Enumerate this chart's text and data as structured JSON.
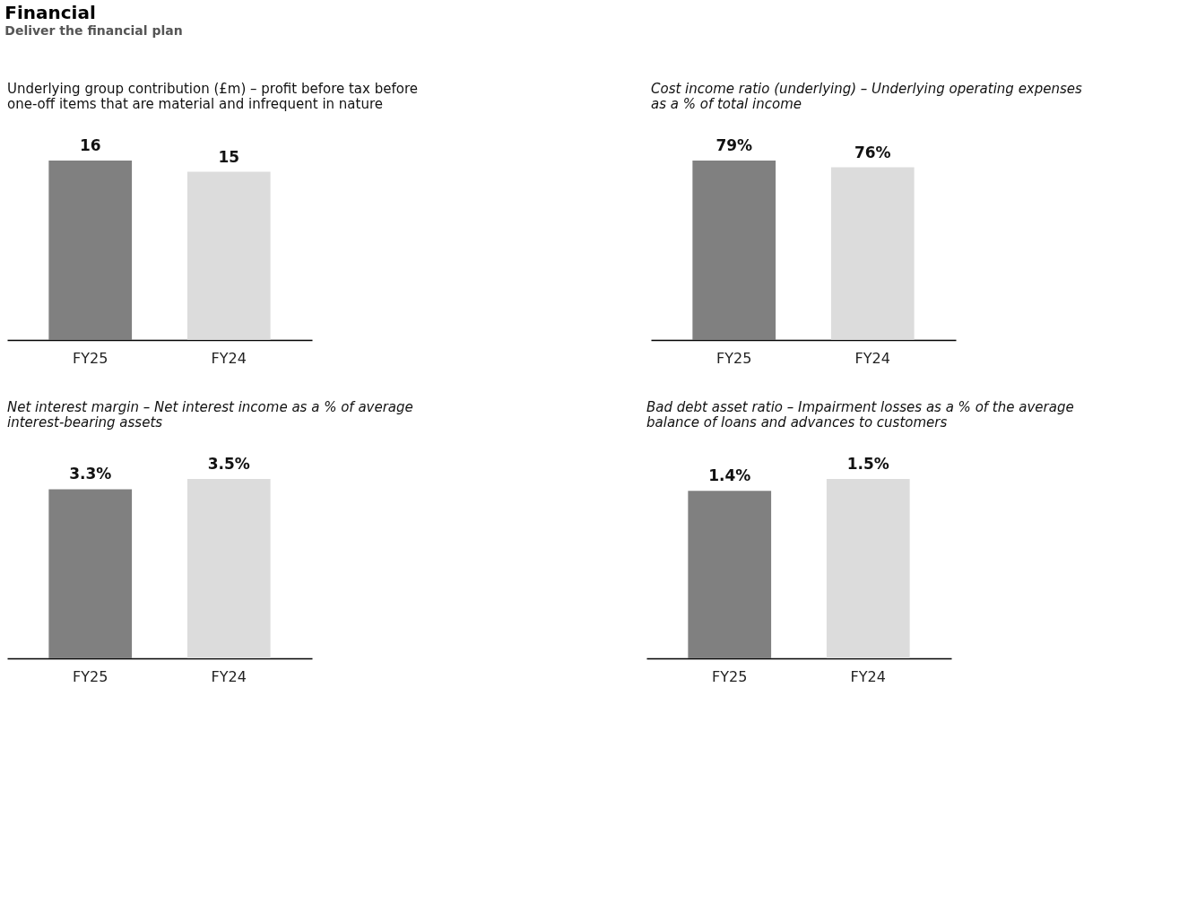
{
  "chart_data": [
    {
      "type": "other",
      "title": "Financial",
      "subtitle": "Deliver the financial plan"
    },
    {
      "type": "bar",
      "title": "Underlying group contribution (£m)",
      "subtitle": "– profit before tax before one-off items that are material and infrequent in nature",
      "categories": [
        "FY25",
        "FY24"
      ],
      "values": [
        16,
        15
      ],
      "colors": [
        "#808080",
        "#dcdcdc"
      ],
      "data_labels": true
    },
    {
      "type": "bar",
      "title": "Cost income ratio (underlying)",
      "subtitle": "– Underlying operating expenses as a % of total income",
      "categories": [
        "FY25",
        "FY24"
      ],
      "values": [
        79,
        76
      ],
      "colors": [
        "#808080",
        "#dcdcdc"
      ],
      "value_labels": [
        "79%",
        "76%"
      ]
    },
    {
      "type": "bar",
      "title": "Net interest margin",
      "subtitle": "– Net interest income as a % of average interest-bearing assets",
      "categories": [
        "FY25",
        "FY24"
      ],
      "values": [
        3.3,
        3.5
      ],
      "colors": [
        "#808080",
        "#dcdcdc"
      ],
      "value_labels": [
        "3.3%",
        "3.5%"
      ]
    },
    {
      "type": "bar",
      "title": "Bad debt asset ratio",
      "subtitle": "– Impairment losses as a % of the average balance of loans and advances to customers",
      "categories": [
        "FY25",
        "FY24"
      ],
      "values": [
        1.4,
        1.5
      ],
      "colors": [
        "#808080",
        "#cccccc"
      ],
      "value_labels": [
        "1.4%",
        "1.5%"
      ]
    }
  ]
}
